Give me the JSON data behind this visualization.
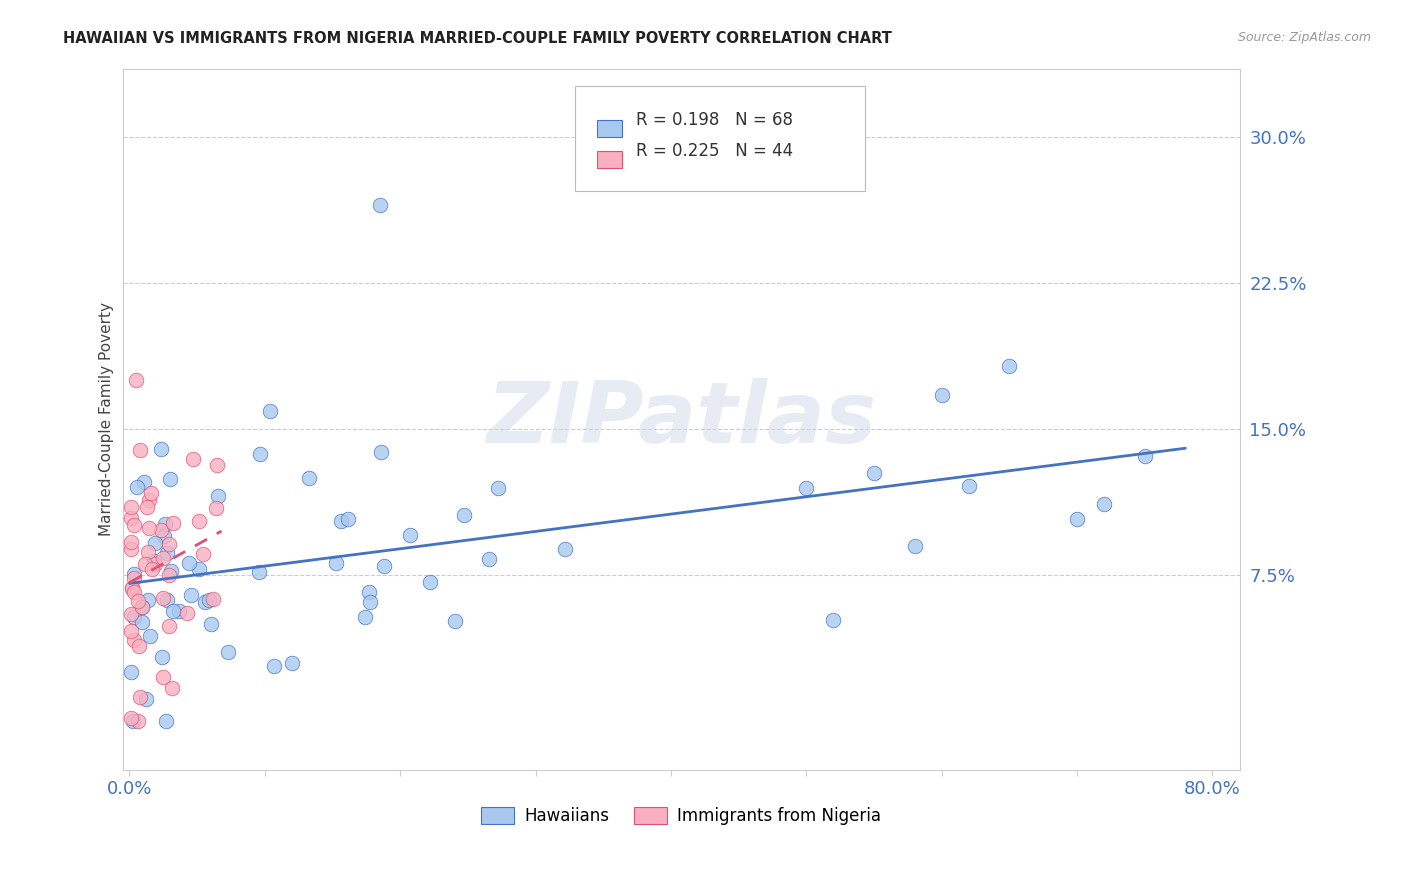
{
  "title": "HAWAIIAN VS IMMIGRANTS FROM NIGERIA MARRIED-COUPLE FAMILY POVERTY CORRELATION CHART",
  "source": "Source: ZipAtlas.com",
  "xlabel_hawaiians": "Hawaiians",
  "xlabel_nigeria": "Immigrants from Nigeria",
  "ylabel": "Married-Couple Family Poverty",
  "watermark": "ZIPatlas",
  "xlim": [
    -0.005,
    0.82
  ],
  "ylim": [
    -0.025,
    0.335
  ],
  "xticks": [
    0.0,
    0.1,
    0.2,
    0.3,
    0.4,
    0.5,
    0.6,
    0.7,
    0.8
  ],
  "xticklabels": [
    "0.0%",
    "",
    "",
    "",
    "",
    "",
    "",
    "",
    "80.0%"
  ],
  "yticks_right": [
    0.075,
    0.15,
    0.225,
    0.3
  ],
  "ytick_labels_right": [
    "7.5%",
    "15.0%",
    "22.5%",
    "30.0%"
  ],
  "R_hawaiians": 0.198,
  "N_hawaiians": 68,
  "R_nigeria": 0.225,
  "N_nigeria": 44,
  "color_hawaiians": "#A8C8F0",
  "color_nigeria": "#F8B0C0",
  "trendline_color_hawaiians": "#4472C4",
  "trendline_color_nigeria": "#E05070",
  "grid_color": "#cccccc",
  "spine_color": "#cccccc"
}
